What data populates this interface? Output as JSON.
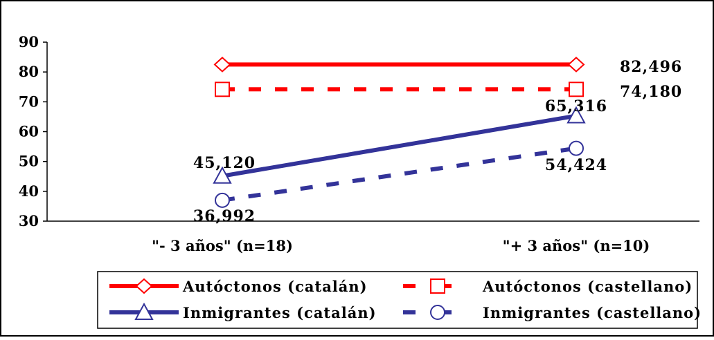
{
  "chart_data": {
    "type": "line",
    "title": "",
    "xlabel": "",
    "ylabel": "",
    "categories": [
      "\"- 3 años\" (n=18)",
      "\"+ 3 años\" (n=10)"
    ],
    "ylim": [
      30,
      90
    ],
    "yticks": [
      30,
      40,
      50,
      60,
      70,
      80,
      90
    ],
    "grid": false,
    "legend_position": "bottom",
    "series": [
      {
        "name": "Autóctonos (catalán)",
        "values": [
          82.496,
          82.496
        ],
        "value_labels": [
          "",
          "82,496"
        ],
        "color": "#ff0000",
        "dash": "solid",
        "marker": "diamond"
      },
      {
        "name": "Autóctonos (castellano)",
        "values": [
          74.18,
          74.18
        ],
        "value_labels": [
          "",
          "74,180"
        ],
        "color": "#ff0000",
        "dash": "dashed",
        "marker": "square"
      },
      {
        "name": "Inmigrantes (catalán)",
        "values": [
          45.12,
          65.316
        ],
        "value_labels": [
          "45,120",
          "65,316"
        ],
        "color": "#333399",
        "dash": "solid",
        "marker": "triangle"
      },
      {
        "name": "Inmigrantes (castellano)",
        "values": [
          36.992,
          54.424
        ],
        "value_labels": [
          "36,992",
          "54,424"
        ],
        "color": "#333399",
        "dash": "dashed",
        "marker": "circle"
      }
    ]
  }
}
